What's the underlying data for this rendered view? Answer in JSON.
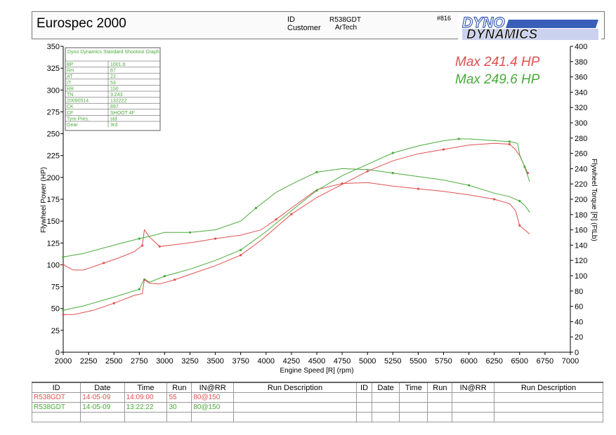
{
  "header": {
    "title": "Eurospec 2000",
    "id_label": "ID",
    "id_value": "R538GDT",
    "customer_label": "Customer",
    "customer_value": "ArTech",
    "report_number": "#816",
    "logo_top": "DYNO",
    "logo_bottom": "DYNAMICS"
  },
  "colors": {
    "run1": "#e05050",
    "run2": "#4aaa3a",
    "axis": "#000000",
    "grid": "#999999"
  },
  "info_table": {
    "title": "Dyno Dynamics Standard Shootout Graph.",
    "rows": [
      [
        "BP",
        "1001.6"
      ],
      [
        "RH",
        "87"
      ],
      [
        "AT",
        "22"
      ],
      [
        "IT",
        "53"
      ],
      [
        "RR",
        "150"
      ],
      [
        "TN",
        "3.243"
      ],
      [
        "20090514",
        "132222"
      ],
      [
        "CK",
        "897"
      ],
      [
        "CF",
        "SHOOT 4F"
      ],
      [
        "Tyre Pres.",
        "std"
      ],
      [
        "Gear",
        "3rd"
      ]
    ]
  },
  "max_labels": [
    {
      "text": "Max 241.4 HP",
      "color": "#e05050"
    },
    {
      "text": "Max 249.6 HP",
      "color": "#4aaa3a"
    }
  ],
  "chart_data": {
    "type": "line",
    "xlabel": "Engine Speed [R] (rpm)",
    "ylabel_left": "Flywheel Power (HP)",
    "ylabel_right": "Flywheel Torque [R] (FtLb)",
    "xlim": [
      2000,
      7000
    ],
    "ylim_left": [
      0,
      350
    ],
    "ylim_right": [
      0,
      400
    ],
    "x_ticks": [
      "2000",
      "2250",
      "2500",
      "2750",
      "3000",
      "3250",
      "3500",
      "3750",
      "4000",
      "4250",
      "4500",
      "4750",
      "5000",
      "5250",
      "5500",
      "5750",
      "6000",
      "6250",
      "6500",
      "6750",
      "7000"
    ],
    "y_left_ticks": [
      "0",
      "25",
      "50",
      "75",
      "100",
      "125",
      "150",
      "175",
      "200",
      "225",
      "250",
      "275",
      "300",
      "325",
      "350"
    ],
    "y_right_ticks": [
      "0",
      "20",
      "40",
      "60",
      "80",
      "100",
      "120",
      "140",
      "160",
      "180",
      "200",
      "220",
      "240",
      "260",
      "280",
      "300",
      "320",
      "340",
      "360",
      "380",
      "400"
    ],
    "grid": false,
    "series": [
      {
        "run": "R538GDT 14:09:00",
        "kind": "power",
        "axis": "left",
        "color": "#e05050",
        "points": [
          [
            2000,
            43
          ],
          [
            2100,
            43
          ],
          [
            2300,
            48
          ],
          [
            2500,
            56
          ],
          [
            2700,
            65
          ],
          [
            2780,
            67
          ],
          [
            2800,
            83
          ],
          [
            2850,
            79
          ],
          [
            2950,
            78
          ],
          [
            3100,
            83
          ],
          [
            3300,
            91
          ],
          [
            3500,
            99
          ],
          [
            3750,
            111
          ],
          [
            3950,
            128
          ],
          [
            4100,
            143
          ],
          [
            4250,
            158
          ],
          [
            4500,
            177
          ],
          [
            4750,
            192
          ],
          [
            5000,
            207
          ],
          [
            5250,
            219
          ],
          [
            5500,
            227
          ],
          [
            5750,
            232
          ],
          [
            6000,
            237
          ],
          [
            6250,
            239
          ],
          [
            6400,
            238
          ],
          [
            6450,
            233
          ],
          [
            6500,
            225
          ],
          [
            6580,
            205
          ]
        ]
      },
      {
        "run": "R538GDT 14:09:00",
        "kind": "torque",
        "axis": "left",
        "color": "#e05050",
        "points": [
          [
            2000,
            100
          ],
          [
            2100,
            94
          ],
          [
            2200,
            94
          ],
          [
            2400,
            102
          ],
          [
            2550,
            108
          ],
          [
            2700,
            115
          ],
          [
            2780,
            122
          ],
          [
            2800,
            140
          ],
          [
            2850,
            132
          ],
          [
            2950,
            121
          ],
          [
            3100,
            123
          ],
          [
            3300,
            126
          ],
          [
            3500,
            130
          ],
          [
            3750,
            134
          ],
          [
            3950,
            140
          ],
          [
            4100,
            152
          ],
          [
            4250,
            165
          ],
          [
            4500,
            186
          ],
          [
            4750,
            193
          ],
          [
            5000,
            194
          ],
          [
            5250,
            190
          ],
          [
            5500,
            187
          ],
          [
            5750,
            184
          ],
          [
            6000,
            180
          ],
          [
            6250,
            175
          ],
          [
            6400,
            170
          ],
          [
            6460,
            162
          ],
          [
            6500,
            145
          ],
          [
            6550,
            140
          ],
          [
            6600,
            135
          ]
        ]
      },
      {
        "run": "R538GDT 13:22:22",
        "kind": "power",
        "axis": "left",
        "color": "#4aaa3a",
        "points": [
          [
            2000,
            48
          ],
          [
            2200,
            53
          ],
          [
            2500,
            63
          ],
          [
            2750,
            72
          ],
          [
            2800,
            84
          ],
          [
            2850,
            80
          ],
          [
            3000,
            87
          ],
          [
            3250,
            95
          ],
          [
            3500,
            105
          ],
          [
            3750,
            117
          ],
          [
            4000,
            138
          ],
          [
            4250,
            162
          ],
          [
            4500,
            185
          ],
          [
            4750,
            202
          ],
          [
            5000,
            215
          ],
          [
            5250,
            228
          ],
          [
            5500,
            236
          ],
          [
            5750,
            242
          ],
          [
            5900,
            244
          ],
          [
            6000,
            244
          ],
          [
            6250,
            242
          ],
          [
            6400,
            241
          ],
          [
            6480,
            239
          ],
          [
            6500,
            226
          ],
          [
            6550,
            212
          ],
          [
            6600,
            195
          ]
        ]
      },
      {
        "run": "R538GDT 13:22:22",
        "kind": "torque",
        "axis": "left",
        "color": "#4aaa3a",
        "points": [
          [
            2000,
            109
          ],
          [
            2200,
            113
          ],
          [
            2550,
            124
          ],
          [
            2750,
            130
          ],
          [
            2900,
            134
          ],
          [
            3000,
            137
          ],
          [
            3250,
            137
          ],
          [
            3500,
            140
          ],
          [
            3750,
            150
          ],
          [
            3900,
            165
          ],
          [
            4100,
            183
          ],
          [
            4300,
            195
          ],
          [
            4500,
            206
          ],
          [
            4750,
            210
          ],
          [
            5000,
            209
          ],
          [
            5250,
            205
          ],
          [
            5500,
            201
          ],
          [
            5750,
            197
          ],
          [
            6000,
            191
          ],
          [
            6250,
            182
          ],
          [
            6400,
            178
          ],
          [
            6500,
            173
          ],
          [
            6550,
            168
          ],
          [
            6600,
            160
          ]
        ]
      }
    ]
  },
  "runs_table": {
    "headers": [
      "ID",
      "Date",
      "Time",
      "Run",
      "IN@RR",
      "Run Description",
      "ID",
      "Date",
      "Time",
      "Run",
      "IN@RR",
      "Run Description"
    ],
    "rows": [
      {
        "color": "#e05050",
        "cells": [
          "R538GDT",
          "14-05-09",
          "14:09:00",
          "55",
          "80@150",
          "",
          "",
          "",
          "",
          "",
          "",
          ""
        ]
      },
      {
        "color": "#4aaa3a",
        "cells": [
          "R538GDT",
          "14-05-09",
          "13:22:22",
          "30",
          "80@150",
          "",
          "",
          "",
          "",
          "",
          "",
          ""
        ]
      },
      {
        "color": "#000000",
        "cells": [
          "",
          "",
          "",
          "",
          "",
          "",
          "",
          "",
          "",
          "",
          "",
          ""
        ]
      }
    ]
  }
}
